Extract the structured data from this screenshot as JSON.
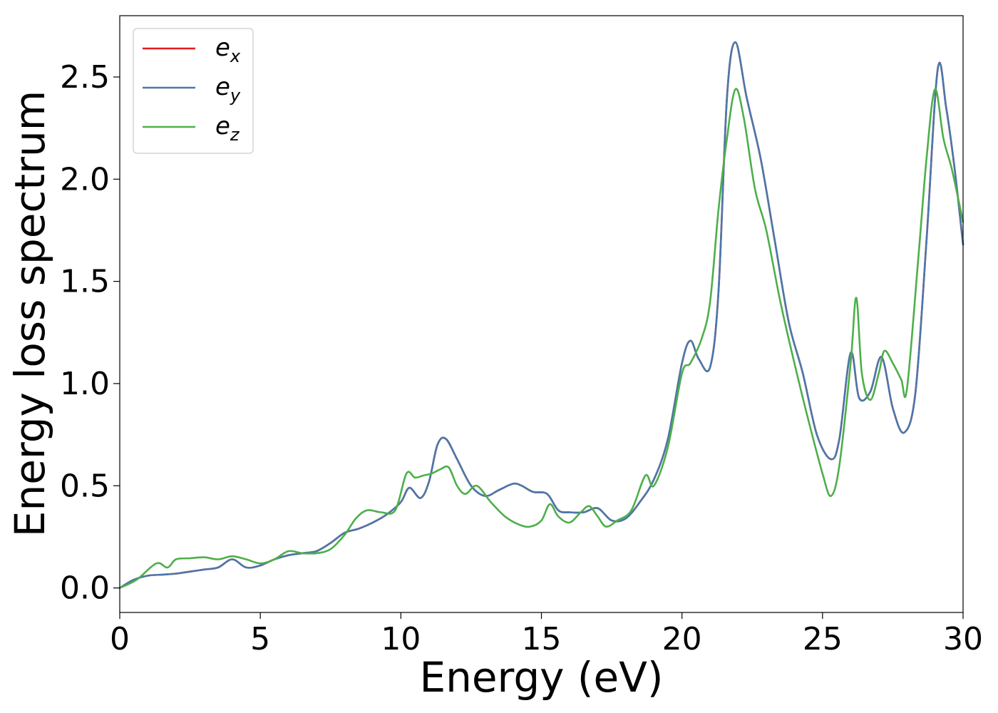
{
  "chart_data": {
    "type": "line",
    "title": "",
    "xlabel": "Energy (eV)",
    "ylabel": "Energy loss spectrum",
    "xlim": [
      0,
      30
    ],
    "ylim": [
      -0.12,
      2.8
    ],
    "xticks": [
      0,
      5,
      10,
      15,
      20,
      25,
      30
    ],
    "xtick_labels": [
      "0",
      "5",
      "10",
      "15",
      "20",
      "25",
      "30"
    ],
    "yticks": [
      0.0,
      0.5,
      1.0,
      1.5,
      2.0,
      2.5
    ],
    "ytick_labels": [
      "0.0",
      "0.5",
      "1.0",
      "1.5",
      "2.0",
      "2.5"
    ],
    "grid": false,
    "legend_position": "top-left",
    "series": [
      {
        "name": "e",
        "subscript": "x",
        "color": "#e41a1c",
        "x": [
          0,
          0.5,
          1,
          1.5,
          2,
          2.5,
          3,
          3.5,
          4,
          4.5,
          5,
          5.5,
          6,
          6.5,
          7,
          7.5,
          8,
          8.5,
          9,
          9.5,
          10,
          10.3,
          10.7,
          11,
          11.3,
          11.6,
          12,
          12.5,
          13,
          13.5,
          14,
          14.3,
          14.7,
          15.2,
          15.6,
          16,
          16.5,
          17,
          17.5,
          18,
          18.5,
          19,
          19.5,
          20,
          20.3,
          20.6,
          21,
          21.3,
          21.6,
          21.9,
          22.3,
          22.8,
          23.3,
          23.8,
          24.3,
          24.8,
          25.3,
          25.6,
          26,
          26.3,
          26.7,
          27.1,
          27.5,
          27.9,
          28.3,
          28.7,
          29.1,
          29.4,
          29.7,
          30
        ],
        "y": [
          0,
          0.04,
          0.06,
          0.065,
          0.07,
          0.08,
          0.09,
          0.1,
          0.14,
          0.1,
          0.11,
          0.14,
          0.16,
          0.17,
          0.18,
          0.22,
          0.27,
          0.29,
          0.32,
          0.36,
          0.42,
          0.49,
          0.44,
          0.52,
          0.7,
          0.73,
          0.63,
          0.5,
          0.45,
          0.48,
          0.51,
          0.5,
          0.47,
          0.46,
          0.38,
          0.37,
          0.37,
          0.39,
          0.33,
          0.34,
          0.42,
          0.53,
          0.73,
          1.1,
          1.21,
          1.12,
          1.08,
          1.45,
          2.4,
          2.67,
          2.4,
          2.1,
          1.7,
          1.3,
          1.05,
          0.75,
          0.63,
          0.73,
          1.15,
          0.93,
          0.96,
          1.13,
          0.88,
          0.76,
          0.95,
          1.7,
          2.54,
          2.35,
          2.05,
          1.68
        ]
      },
      {
        "name": "e",
        "subscript": "y",
        "color": "#4a78aa",
        "x": [
          0,
          0.5,
          1,
          1.5,
          2,
          2.5,
          3,
          3.5,
          4,
          4.5,
          5,
          5.5,
          6,
          6.5,
          7,
          7.5,
          8,
          8.5,
          9,
          9.5,
          10,
          10.3,
          10.7,
          11,
          11.3,
          11.6,
          12,
          12.5,
          13,
          13.5,
          14,
          14.3,
          14.7,
          15.2,
          15.6,
          16,
          16.5,
          17,
          17.5,
          18,
          18.5,
          19,
          19.5,
          20,
          20.3,
          20.6,
          21,
          21.3,
          21.6,
          21.9,
          22.3,
          22.8,
          23.3,
          23.8,
          24.3,
          24.8,
          25.3,
          25.6,
          26,
          26.3,
          26.7,
          27.1,
          27.5,
          27.9,
          28.3,
          28.7,
          29.1,
          29.4,
          29.7,
          30
        ],
        "y": [
          0,
          0.04,
          0.06,
          0.065,
          0.07,
          0.08,
          0.09,
          0.1,
          0.14,
          0.1,
          0.11,
          0.14,
          0.16,
          0.17,
          0.18,
          0.22,
          0.27,
          0.29,
          0.32,
          0.36,
          0.42,
          0.49,
          0.44,
          0.52,
          0.7,
          0.73,
          0.63,
          0.5,
          0.45,
          0.48,
          0.51,
          0.5,
          0.47,
          0.46,
          0.38,
          0.37,
          0.37,
          0.39,
          0.33,
          0.34,
          0.42,
          0.53,
          0.73,
          1.1,
          1.21,
          1.12,
          1.08,
          1.45,
          2.4,
          2.67,
          2.4,
          2.1,
          1.7,
          1.3,
          1.05,
          0.75,
          0.63,
          0.73,
          1.15,
          0.93,
          0.96,
          1.13,
          0.88,
          0.76,
          0.95,
          1.7,
          2.54,
          2.35,
          2.05,
          1.68
        ]
      },
      {
        "name": "e",
        "subscript": "z",
        "color": "#4daf4a",
        "x": [
          0,
          0.6,
          1.3,
          1.7,
          2,
          2.5,
          3,
          3.5,
          4,
          4.5,
          5,
          5.5,
          6,
          6.5,
          7,
          7.5,
          8,
          8.4,
          8.8,
          9.3,
          9.8,
          10.2,
          10.5,
          10.8,
          11.1,
          11.4,
          11.7,
          12,
          12.3,
          12.7,
          13.2,
          13.7,
          14.2,
          14.6,
          15,
          15.3,
          15.6,
          16,
          16.4,
          16.7,
          17,
          17.3,
          17.7,
          18.2,
          18.7,
          19,
          19.5,
          20,
          20.3,
          20.7,
          21,
          21.3,
          21.6,
          21.9,
          22.2,
          22.6,
          23,
          23.5,
          24,
          24.5,
          25,
          25.3,
          25.6,
          26,
          26.2,
          26.4,
          26.7,
          27,
          27.2,
          27.5,
          27.8,
          28,
          28.4,
          28.7,
          29,
          29.3,
          29.6,
          30
        ],
        "y": [
          0,
          0.04,
          0.12,
          0.1,
          0.14,
          0.145,
          0.15,
          0.14,
          0.155,
          0.14,
          0.12,
          0.14,
          0.18,
          0.17,
          0.17,
          0.19,
          0.26,
          0.34,
          0.38,
          0.37,
          0.38,
          0.56,
          0.54,
          0.55,
          0.56,
          0.58,
          0.59,
          0.5,
          0.46,
          0.5,
          0.42,
          0.35,
          0.31,
          0.3,
          0.33,
          0.41,
          0.35,
          0.32,
          0.37,
          0.4,
          0.35,
          0.3,
          0.33,
          0.38,
          0.55,
          0.5,
          0.69,
          1.05,
          1.1,
          1.22,
          1.4,
          1.85,
          2.2,
          2.44,
          2.3,
          1.95,
          1.75,
          1.4,
          1.1,
          0.82,
          0.56,
          0.45,
          0.6,
          1.1,
          1.42,
          1.05,
          0.92,
          1.05,
          1.16,
          1.1,
          1.02,
          0.97,
          1.6,
          2.1,
          2.44,
          2.2,
          2.05,
          1.79
        ]
      }
    ]
  }
}
